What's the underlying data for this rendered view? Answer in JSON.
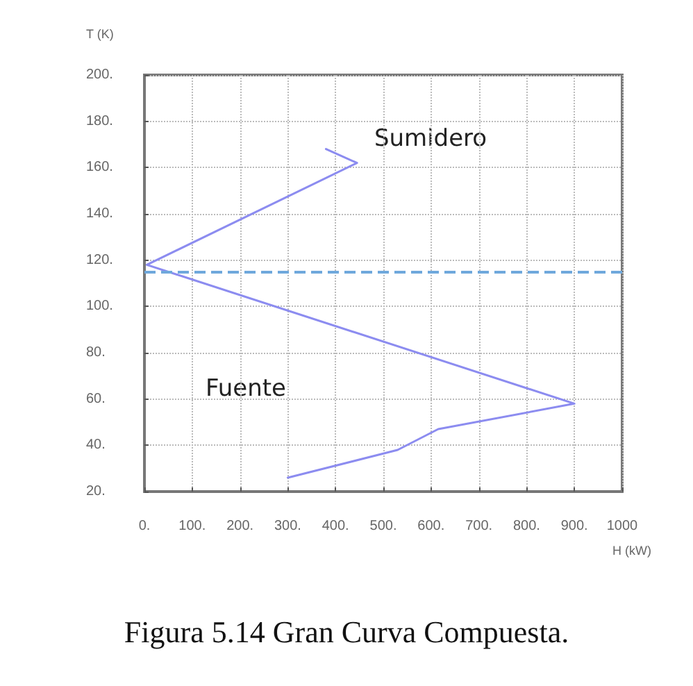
{
  "chart_data": {
    "type": "line",
    "xlabel": "H (kW)",
    "ylabel": "T (K)",
    "x": [
      380,
      445,
      5,
      900,
      615,
      530,
      300
    ],
    "series": [
      {
        "color": "#8c8cf0",
        "values": [
          168,
          162,
          118,
          58,
          47,
          38,
          26
        ]
      }
    ],
    "xlim": [
      0,
      1000
    ],
    "ylim": [
      20,
      200
    ],
    "xticks": [
      {
        "value": 0,
        "label": "0."
      },
      {
        "value": 100,
        "label": "100."
      },
      {
        "value": 200,
        "label": "200."
      },
      {
        "value": 300,
        "label": "300."
      },
      {
        "value": 400,
        "label": "400."
      },
      {
        "value": 500,
        "label": "500."
      },
      {
        "value": 600,
        "label": "600."
      },
      {
        "value": 700,
        "label": "700."
      },
      {
        "value": 800,
        "label": "800."
      },
      {
        "value": 900,
        "label": "900."
      },
      1000
    ],
    "yticks": [
      {
        "value": 20,
        "label": "20."
      },
      {
        "value": 40,
        "label": "40."
      },
      {
        "value": 60,
        "label": "60."
      },
      {
        "value": 80,
        "label": "80."
      },
      {
        "value": 100,
        "label": "100."
      },
      {
        "value": 120,
        "label": "120."
      },
      {
        "value": 140,
        "label": "140."
      },
      {
        "value": 160,
        "label": "160."
      },
      {
        "value": 180,
        "label": "180."
      },
      {
        "value": 200,
        "label": "200."
      }
    ],
    "ref_lines": [
      {
        "axis": "y",
        "value": 115,
        "color": "#6fa8dc",
        "line_style": "dashed"
      }
    ],
    "annotations": [
      "Sumidero",
      "Fuente",
      "Figura 5.14 Gran Curva Compuesta."
    ],
    "grid": true,
    "marker": "none",
    "line_style": "solid"
  }
}
